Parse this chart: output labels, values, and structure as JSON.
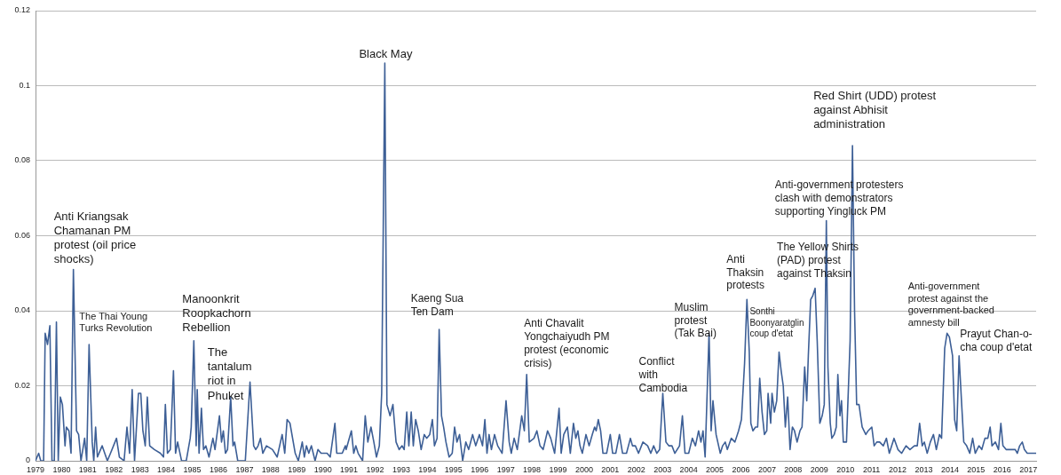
{
  "chart_data": {
    "type": "line",
    "color": "#3d5f96",
    "marker": "none",
    "grid": "y",
    "xlim": [
      1979,
      2017.3
    ],
    "xticks": [
      1979,
      1980,
      1981,
      1982,
      1983,
      1984,
      1985,
      1986,
      1987,
      1988,
      1989,
      1990,
      1991,
      1992,
      1993,
      1994,
      1995,
      1996,
      1997,
      1998,
      1999,
      2000,
      2001,
      2002,
      2003,
      2004,
      2005,
      2006,
      2007,
      2008,
      2009,
      2010,
      2011,
      2012,
      2013,
      2014,
      2015,
      2016,
      2017
    ],
    "ylim": [
      0,
      0.12
    ],
    "yticks": [
      0,
      0.02,
      0.04,
      0.06,
      0.08,
      0.1,
      0.12
    ],
    "x": [
      1979.0,
      1979.12,
      1979.2,
      1979.31,
      1979.37,
      1979.46,
      1979.55,
      1979.63,
      1979.72,
      1979.8,
      1979.87,
      1979.95,
      1980.03,
      1980.13,
      1980.18,
      1980.28,
      1980.36,
      1980.45,
      1980.57,
      1980.65,
      1980.74,
      1980.88,
      1980.96,
      1981.05,
      1981.17,
      1981.23,
      1981.3,
      1981.37,
      1981.55,
      1981.75,
      1981.87,
      1982.1,
      1982.21,
      1982.39,
      1982.5,
      1982.6,
      1982.7,
      1982.79,
      1982.94,
      1983.03,
      1983.11,
      1983.2,
      1983.28,
      1983.37,
      1983.55,
      1983.78,
      1983.9,
      1983.97,
      1984.05,
      1984.16,
      1984.28,
      1984.36,
      1984.44,
      1984.59,
      1984.77,
      1984.92,
      1984.96,
      1985.06,
      1985.15,
      1985.19,
      1985.26,
      1985.35,
      1985.43,
      1985.52,
      1985.64,
      1985.79,
      1985.87,
      1986.04,
      1986.12,
      1986.19,
      1986.27,
      1986.35,
      1986.47,
      1986.56,
      1986.62,
      1986.74,
      1987.03,
      1987.21,
      1987.35,
      1987.43,
      1987.52,
      1987.61,
      1987.7,
      1987.84,
      1988.07,
      1988.25,
      1988.44,
      1988.54,
      1988.63,
      1988.74,
      1988.94,
      1989.06,
      1989.21,
      1989.29,
      1989.37,
      1989.46,
      1989.56,
      1989.7,
      1989.81,
      1989.93,
      1990.16,
      1990.28,
      1990.46,
      1990.53,
      1990.74,
      1990.86,
      1990.89,
      1991.09,
      1991.18,
      1991.26,
      1991.35,
      1991.52,
      1991.62,
      1991.72,
      1991.84,
      1991.95,
      1992.05,
      1992.16,
      1992.25,
      1992.37,
      1992.45,
      1992.57,
      1992.68,
      1992.8,
      1992.92,
      1993.03,
      1993.11,
      1993.21,
      1993.29,
      1993.38,
      1993.46,
      1993.55,
      1993.65,
      1993.76,
      1993.88,
      1993.97,
      1994.09,
      1994.19,
      1994.27,
      1994.37,
      1994.45,
      1994.54,
      1994.62,
      1994.71,
      1994.83,
      1994.95,
      1995.04,
      1995.13,
      1995.23,
      1995.35,
      1995.47,
      1995.58,
      1995.73,
      1995.85,
      1995.99,
      1996.11,
      1996.2,
      1996.28,
      1996.36,
      1996.45,
      1996.57,
      1996.69,
      1996.86,
      1997.01,
      1997.13,
      1997.21,
      1997.32,
      1997.44,
      1997.61,
      1997.71,
      1997.8,
      1997.9,
      1998.08,
      1998.19,
      1998.31,
      1998.43,
      1998.6,
      1998.72,
      1998.87,
      1999.04,
      1999.12,
      1999.22,
      1999.36,
      1999.47,
      1999.59,
      1999.68,
      1999.76,
      1999.84,
      1999.93,
      2000.07,
      2000.19,
      2000.31,
      2000.4,
      2000.46,
      2000.54,
      2000.63,
      2000.72,
      2000.86,
      2001.0,
      2001.09,
      2001.21,
      2001.35,
      2001.47,
      2001.62,
      2001.77,
      2001.85,
      2001.96,
      2002.08,
      2002.25,
      2002.43,
      2002.55,
      2002.66,
      2002.78,
      2002.89,
      2003.01,
      2003.13,
      2003.24,
      2003.36,
      2003.47,
      2003.65,
      2003.76,
      2003.86,
      2004.0,
      2004.14,
      2004.26,
      2004.38,
      2004.47,
      2004.55,
      2004.63,
      2004.78,
      2004.86,
      2004.93,
      2005.05,
      2005.21,
      2005.3,
      2005.4,
      2005.48,
      2005.63,
      2005.77,
      2005.91,
      2006.02,
      2006.14,
      2006.23,
      2006.32,
      2006.38,
      2006.46,
      2006.56,
      2006.64,
      2006.72,
      2006.81,
      2006.9,
      2006.99,
      2007.04,
      2007.14,
      2007.19,
      2007.28,
      2007.37,
      2007.46,
      2007.54,
      2007.62,
      2007.7,
      2007.79,
      2007.88,
      2007.97,
      2008.05,
      2008.15,
      2008.26,
      2008.34,
      2008.44,
      2008.52,
      2008.58,
      2008.67,
      2008.75,
      2008.84,
      2008.92,
      2009.02,
      2009.11,
      2009.19,
      2009.27,
      2009.33,
      2009.42,
      2009.48,
      2009.57,
      2009.65,
      2009.71,
      2009.79,
      2009.85,
      2009.92,
      2010.04,
      2010.18,
      2010.27,
      2010.35,
      2010.43,
      2010.52,
      2010.64,
      2010.78,
      2010.87,
      2011.01,
      2011.1,
      2011.2,
      2011.31,
      2011.45,
      2011.57,
      2011.68,
      2011.86,
      2012.01,
      2012.15,
      2012.32,
      2012.47,
      2012.64,
      2012.75,
      2012.84,
      2012.94,
      2013.02,
      2013.13,
      2013.25,
      2013.37,
      2013.48,
      2013.6,
      2013.68,
      2013.8,
      2013.89,
      2013.98,
      2014.1,
      2014.18,
      2014.26,
      2014.35,
      2014.45,
      2014.53,
      2014.64,
      2014.76,
      2014.87,
      2014.97,
      2015.11,
      2015.22,
      2015.34,
      2015.45,
      2015.54,
      2015.61,
      2015.74,
      2015.86,
      2015.95,
      2016.03,
      2016.15,
      2016.32,
      2016.5,
      2016.58,
      2016.67,
      2016.77,
      2016.85,
      2016.96,
      2017.11,
      2017.29
    ],
    "values": [
      0,
      0.002,
      0,
      0,
      0.034,
      0.031,
      0.036,
      0,
      0,
      0.037,
      0,
      0.017,
      0.015,
      0.004,
      0.009,
      0.008,
      0.002,
      0.051,
      0.008,
      0.007,
      0,
      0.006,
      0,
      0.031,
      0.005,
      0,
      0.009,
      0.001,
      0.004,
      0,
      0.002,
      0.006,
      0.001,
      0,
      0.009,
      0.002,
      0.019,
      0,
      0.018,
      0.018,
      0.008,
      0.004,
      0.017,
      0.004,
      0.003,
      0.002,
      0.001,
      0.015,
      0.002,
      0.003,
      0.024,
      0.002,
      0.005,
      0,
      0,
      0.006,
      0.009,
      0.032,
      0.004,
      0.019,
      0.002,
      0.014,
      0.003,
      0.004,
      0.001,
      0.006,
      0.003,
      0.012,
      0.005,
      0.008,
      0.002,
      0.003,
      0.017,
      0.004,
      0.005,
      0,
      0,
      0.021,
      0.004,
      0.003,
      0.004,
      0.006,
      0.002,
      0.004,
      0.003,
      0.001,
      0.007,
      0.002,
      0.011,
      0.01,
      0.002,
      0,
      0.005,
      0.001,
      0.004,
      0.002,
      0.004,
      0,
      0.003,
      0.002,
      0.002,
      0.001,
      0.01,
      0.002,
      0.002,
      0.004,
      0.003,
      0.008,
      0.002,
      0.004,
      0.002,
      0,
      0.012,
      0.005,
      0.009,
      0.005,
      0.001,
      0.004,
      0.018,
      0.106,
      0.015,
      0.012,
      0.015,
      0.005,
      0.003,
      0.004,
      0.003,
      0.013,
      0.004,
      0.013,
      0.004,
      0.011,
      0.008,
      0.003,
      0.007,
      0.006,
      0.007,
      0.011,
      0.004,
      0.006,
      0.035,
      0.012,
      0.009,
      0.005,
      0.001,
      0.002,
      0.009,
      0.005,
      0.007,
      0,
      0.005,
      0.003,
      0.007,
      0.004,
      0.007,
      0.004,
      0.011,
      0.002,
      0.007,
      0.003,
      0.007,
      0.004,
      0.002,
      0.016,
      0.005,
      0.002,
      0.006,
      0.003,
      0.012,
      0.008,
      0.023,
      0.005,
      0.006,
      0.008,
      0.004,
      0.003,
      0.008,
      0.006,
      0.002,
      0.014,
      0.002,
      0.007,
      0.009,
      0.002,
      0.01,
      0.006,
      0.008,
      0.004,
      0.002,
      0.007,
      0.004,
      0.007,
      0.009,
      0.008,
      0.011,
      0.008,
      0.002,
      0.002,
      0.007,
      0.002,
      0.002,
      0.007,
      0.002,
      0.002,
      0.006,
      0.004,
      0.004,
      0.002,
      0.005,
      0.004,
      0.002,
      0.004,
      0.002,
      0.003,
      0.018,
      0.005,
      0.004,
      0.004,
      0.002,
      0.004,
      0.012,
      0.002,
      0.002,
      0.006,
      0.004,
      0.008,
      0.005,
      0.008,
      0.001,
      0.034,
      0.008,
      0.016,
      0.007,
      0.002,
      0.004,
      0.005,
      0.003,
      0.006,
      0.005,
      0.008,
      0.011,
      0.026,
      0.043,
      0.029,
      0.01,
      0.008,
      0.009,
      0.009,
      0.022,
      0.013,
      0.007,
      0.008,
      0.018,
      0.01,
      0.018,
      0.013,
      0.016,
      0.029,
      0.024,
      0.02,
      0.009,
      0.017,
      0.003,
      0.009,
      0.008,
      0.005,
      0.008,
      0.009,
      0.025,
      0.016,
      0.028,
      0.043,
      0.044,
      0.046,
      0.032,
      0.01,
      0.012,
      0.015,
      0.064,
      0.025,
      0.01,
      0.006,
      0.007,
      0.009,
      0.023,
      0.012,
      0.016,
      0.005,
      0.005,
      0.032,
      0.084,
      0.04,
      0.015,
      0.015,
      0.009,
      0.007,
      0.008,
      0.009,
      0.004,
      0.005,
      0.005,
      0.004,
      0.006,
      0.002,
      0.006,
      0.003,
      0.002,
      0.004,
      0.003,
      0.004,
      0.004,
      0.01,
      0.004,
      0.005,
      0.002,
      0.005,
      0.007,
      0.003,
      0.007,
      0.006,
      0.03,
      0.034,
      0.033,
      0.028,
      0.011,
      0.008,
      0.028,
      0.015,
      0.005,
      0.004,
      0.002,
      0.006,
      0.002,
      0.004,
      0.003,
      0.006,
      0.006,
      0.009,
      0.004,
      0.005,
      0.003,
      0.01,
      0.004,
      0.003,
      0.003,
      0.003,
      0.002,
      0.004,
      0.005,
      0.003,
      0.002,
      0.002,
      0.002
    ],
    "annotations": [
      {
        "text": "Anti Kriangsak Chamanan PM protest (oil price shocks)",
        "x": 1980.45,
        "y": 0.051
      },
      {
        "text": "The Thai Young Turks Revolution",
        "x": 1981.05,
        "y": 0.031
      },
      {
        "text": "Manoonkrit Roopkachorn Rebellion",
        "x": 1985.06,
        "y": 0.032
      },
      {
        "text": "The tantalum riot in Phuket",
        "x": 1986.47,
        "y": 0.017
      },
      {
        "text": "Black May",
        "x": 1992.37,
        "y": 0.106
      },
      {
        "text": "Kaeng Sua Ten Dam",
        "x": 1994.45,
        "y": 0.035
      },
      {
        "text": "Anti Chavalit Yongchaiyudh PM protest (economic crisis)",
        "x": 1997.8,
        "y": 0.023
      },
      {
        "text": "Conflict with Cambodia",
        "x": 2003.01,
        "y": 0.018
      },
      {
        "text": "Muslim protest (Tak Bai)",
        "x": 2004.78,
        "y": 0.034
      },
      {
        "text": "Anti Thaksin protests",
        "x": 2006.23,
        "y": 0.043
      },
      {
        "text": "Sonthi Boonyaratglin coup d'etat",
        "x": 2007.46,
        "y": 0.029
      },
      {
        "text": "The Yellow Shirts (PAD) protest against Thaksin",
        "x": 2008.84,
        "y": 0.046
      },
      {
        "text": "Anti-government protesters clash with demonstrators supporting Yingluck PM",
        "x": 2009.27,
        "y": 0.064
      },
      {
        "text": "Red Shirt (UDD) protest against Abhisit administration",
        "x": 2010.27,
        "y": 0.084
      },
      {
        "text": "Anti-government protest against the government-backed amnesty bill",
        "x": 2013.89,
        "y": 0.034
      },
      {
        "text": "Prayut Chan-o-cha coup d'etat",
        "x": 2014.35,
        "y": 0.028
      }
    ]
  }
}
